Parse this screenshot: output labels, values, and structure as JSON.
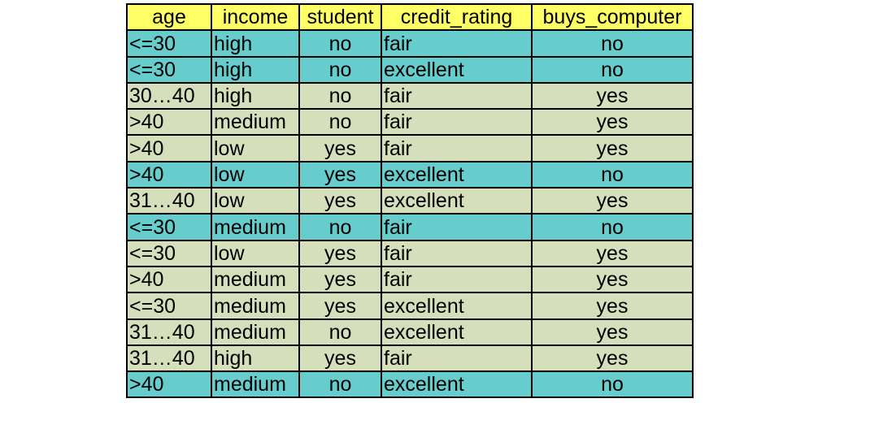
{
  "table": {
    "headers": [
      "age",
      "income",
      "student",
      "credit_rating",
      "buys_computer"
    ],
    "rows": [
      {
        "age": "<=30",
        "income": "high",
        "student": "no",
        "credit_rating": "fair",
        "buys_computer": "no"
      },
      {
        "age": "<=30",
        "income": "high",
        "student": "no",
        "credit_rating": "excellent",
        "buys_computer": "no"
      },
      {
        "age": "30…40",
        "income": "high",
        "student": "no",
        "credit_rating": "fair",
        "buys_computer": "yes"
      },
      {
        "age": ">40",
        "income": "medium",
        "student": "no",
        "credit_rating": "fair",
        "buys_computer": "yes"
      },
      {
        "age": ">40",
        "income": "low",
        "student": "yes",
        "credit_rating": "fair",
        "buys_computer": "yes"
      },
      {
        "age": ">40",
        "income": "low",
        "student": "yes",
        "credit_rating": "excellent",
        "buys_computer": "no"
      },
      {
        "age": "31…40",
        "income": "low",
        "student": "yes",
        "credit_rating": "excellent",
        "buys_computer": "yes"
      },
      {
        "age": "<=30",
        "income": "medium",
        "student": "no",
        "credit_rating": "fair",
        "buys_computer": "no"
      },
      {
        "age": "<=30",
        "income": "low",
        "student": "yes",
        "credit_rating": "fair",
        "buys_computer": "yes"
      },
      {
        "age": ">40",
        "income": "medium",
        "student": "yes",
        "credit_rating": "fair",
        "buys_computer": "yes"
      },
      {
        "age": "<=30",
        "income": "medium",
        "student": "yes",
        "credit_rating": "excellent",
        "buys_computer": "yes"
      },
      {
        "age": "31…40",
        "income": "medium",
        "student": "no",
        "credit_rating": "excellent",
        "buys_computer": "yes"
      },
      {
        "age": "31…40",
        "income": "high",
        "student": "yes",
        "credit_rating": "fair",
        "buys_computer": "yes"
      },
      {
        "age": ">40",
        "income": "medium",
        "student": "no",
        "credit_rating": "excellent",
        "buys_computer": "no"
      }
    ]
  },
  "colors": {
    "header_bg": "#ffff66",
    "class_no_bg": "#66cccc",
    "class_yes_bg": "#d6dfbc",
    "border": "#000000"
  }
}
